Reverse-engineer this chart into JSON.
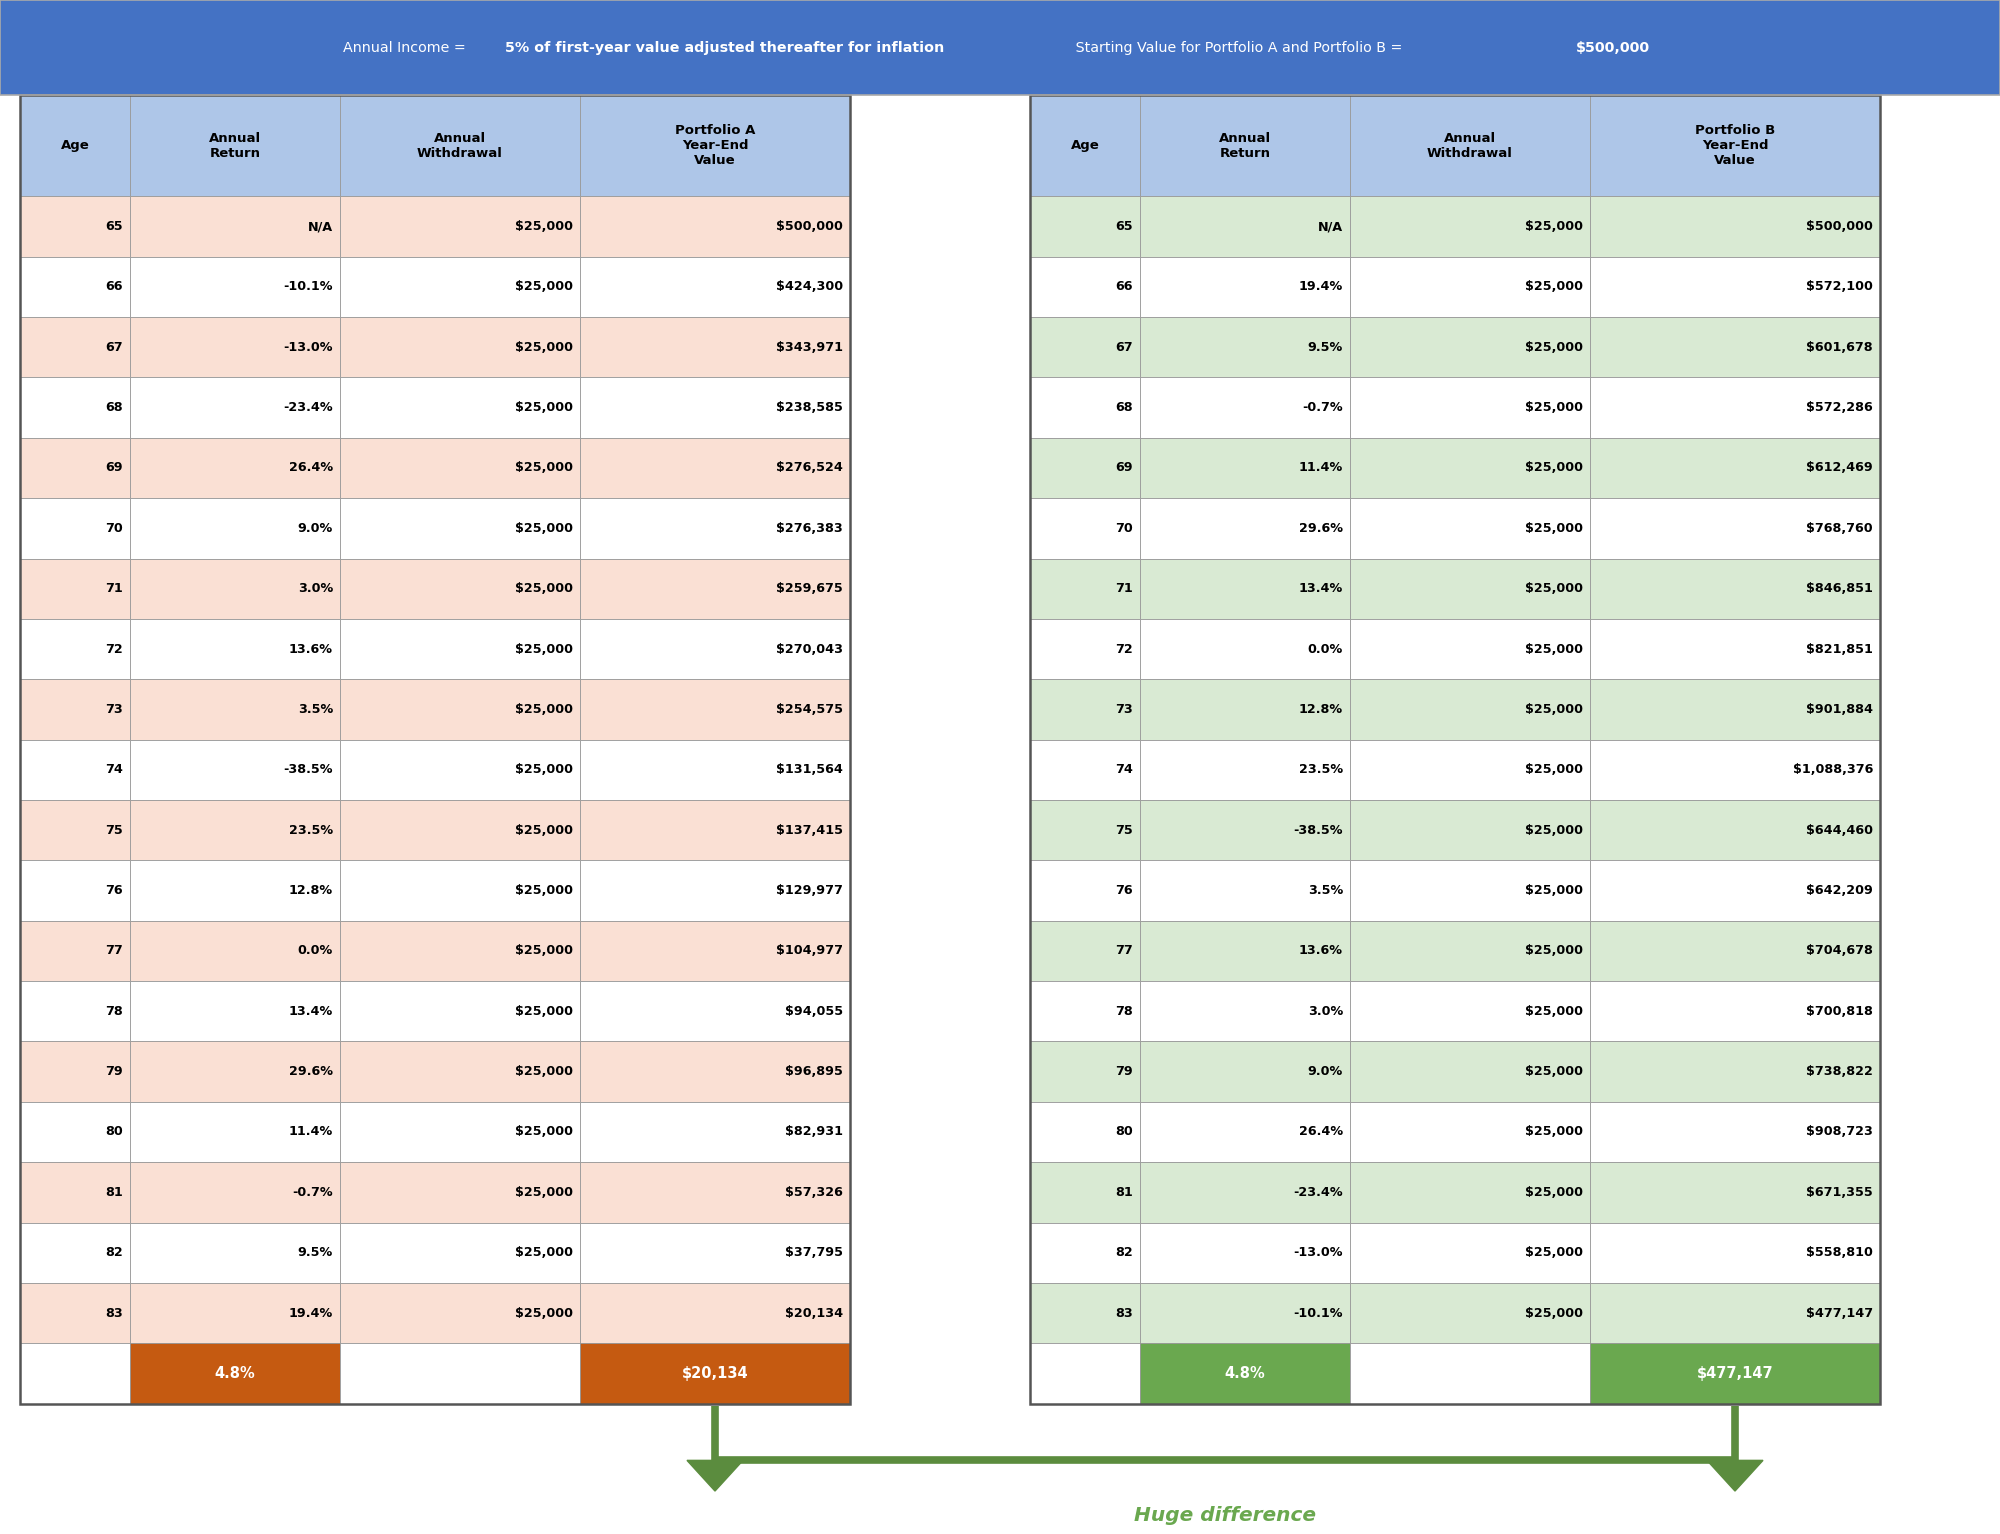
{
  "header_bg": "#4472C4",
  "col_header_bg": "#AEC6E8",
  "row_odd_bg_a": "#FAE0D4",
  "row_even_bg": "#FFFFFF",
  "row_odd_bg_b": "#D9EAD3",
  "total_row_a_bg": "#C55A11",
  "total_row_b_bg": "#6AA84F",
  "total_row_text": "#FFFFFF",
  "arrow_color": "#5B8C3E",
  "huge_diff_color": "#6AA84F",
  "columns_a": [
    "Age",
    "Annual\nReturn",
    "Annual\nWithdrawal",
    "Portfolio A\nYear-End\nValue"
  ],
  "columns_b": [
    "Age",
    "Annual\nReturn",
    "Annual\nWithdrawal",
    "Portfolio B\nYear-End\nValue"
  ],
  "data_a": [
    [
      "65",
      "N/A",
      "$25,000",
      "$500,000"
    ],
    [
      "66",
      "-10.1%",
      "$25,000",
      "$424,300"
    ],
    [
      "67",
      "-13.0%",
      "$25,000",
      "$343,971"
    ],
    [
      "68",
      "-23.4%",
      "$25,000",
      "$238,585"
    ],
    [
      "69",
      "26.4%",
      "$25,000",
      "$276,524"
    ],
    [
      "70",
      "9.0%",
      "$25,000",
      "$276,383"
    ],
    [
      "71",
      "3.0%",
      "$25,000",
      "$259,675"
    ],
    [
      "72",
      "13.6%",
      "$25,000",
      "$270,043"
    ],
    [
      "73",
      "3.5%",
      "$25,000",
      "$254,575"
    ],
    [
      "74",
      "-38.5%",
      "$25,000",
      "$131,564"
    ],
    [
      "75",
      "23.5%",
      "$25,000",
      "$137,415"
    ],
    [
      "76",
      "12.8%",
      "$25,000",
      "$129,977"
    ],
    [
      "77",
      "0.0%",
      "$25,000",
      "$104,977"
    ],
    [
      "78",
      "13.4%",
      "$25,000",
      "$94,055"
    ],
    [
      "79",
      "29.6%",
      "$25,000",
      "$96,895"
    ],
    [
      "80",
      "11.4%",
      "$25,000",
      "$82,931"
    ],
    [
      "81",
      "-0.7%",
      "$25,000",
      "$57,326"
    ],
    [
      "82",
      "9.5%",
      "$25,000",
      "$37,795"
    ],
    [
      "83",
      "19.4%",
      "$25,000",
      "$20,134"
    ]
  ],
  "data_b": [
    [
      "65",
      "N/A",
      "$25,000",
      "$500,000"
    ],
    [
      "66",
      "19.4%",
      "$25,000",
      "$572,100"
    ],
    [
      "67",
      "9.5%",
      "$25,000",
      "$601,678"
    ],
    [
      "68",
      "-0.7%",
      "$25,000",
      "$572,286"
    ],
    [
      "69",
      "11.4%",
      "$25,000",
      "$612,469"
    ],
    [
      "70",
      "29.6%",
      "$25,000",
      "$768,760"
    ],
    [
      "71",
      "13.4%",
      "$25,000",
      "$846,851"
    ],
    [
      "72",
      "0.0%",
      "$25,000",
      "$821,851"
    ],
    [
      "73",
      "12.8%",
      "$25,000",
      "$901,884"
    ],
    [
      "74",
      "23.5%",
      "$25,000",
      "$1,088,376"
    ],
    [
      "75",
      "-38.5%",
      "$25,000",
      "$644,460"
    ],
    [
      "76",
      "3.5%",
      "$25,000",
      "$642,209"
    ],
    [
      "77",
      "13.6%",
      "$25,000",
      "$704,678"
    ],
    [
      "78",
      "3.0%",
      "$25,000",
      "$700,818"
    ],
    [
      "79",
      "9.0%",
      "$25,000",
      "$738,822"
    ],
    [
      "80",
      "26.4%",
      "$25,000",
      "$908,723"
    ],
    [
      "81",
      "-23.4%",
      "$25,000",
      "$671,355"
    ],
    [
      "82",
      "-13.0%",
      "$25,000",
      "$558,810"
    ],
    [
      "83",
      "-10.1%",
      "$25,000",
      "$477,147"
    ]
  ],
  "total_a": [
    "",
    "4.8%",
    "",
    "$20,134"
  ],
  "total_b": [
    "",
    "4.8%",
    "",
    "$477,147"
  ],
  "title_normal1": "Annual Income = ",
  "title_bold1": "5% of first-year value adjusted thereafter for inflation",
  "title_normal2": " Starting Value for Portfolio A and Portfolio B = ",
  "title_bold2": "$500,000",
  "fig_width": 20.0,
  "fig_height": 15.34
}
